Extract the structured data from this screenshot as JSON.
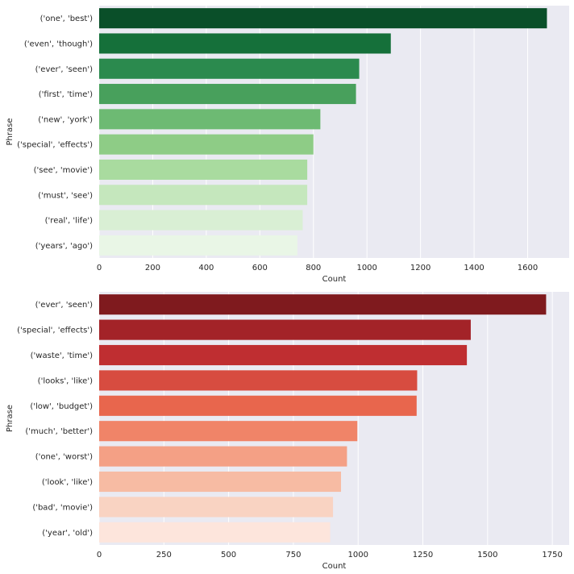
{
  "chart_data": [
    {
      "type": "bar",
      "orientation": "horizontal",
      "palette": [
        "#0a4f29",
        "#15703a",
        "#2b8a4e",
        "#48a05c",
        "#6dba73",
        "#8ecc86",
        "#a9db9f",
        "#c5e7bd",
        "#d9efd4",
        "#e9f6e6"
      ],
      "categories": [
        "('one', 'best')",
        "('even', 'though')",
        "('ever', 'seen')",
        "('first', 'time')",
        "('new', 'york')",
        "('special', 'effects')",
        "('see', 'movie')",
        "('must', 'see')",
        "('real', 'life')",
        "('years', 'ago')"
      ],
      "values": [
        1672,
        1089,
        971,
        959,
        826,
        800,
        777,
        777,
        760,
        740
      ],
      "xlabel": "Count",
      "ylabel": "Phrase",
      "xlim": [
        0,
        1755
      ],
      "xticks": [
        0,
        200,
        400,
        600,
        800,
        1000,
        1200,
        1400,
        1600
      ],
      "grid": true
    },
    {
      "type": "bar",
      "orientation": "horizontal",
      "palette": [
        "#7f1a1e",
        "#a32328",
        "#bf2e31",
        "#d74c40",
        "#e8664d",
        "#f08468",
        "#f4a085",
        "#f7bba3",
        "#f9d3c2",
        "#fde5dc"
      ],
      "categories": [
        "('ever', 'seen')",
        "('special', 'effects')",
        "('waste', 'time')",
        "('looks', 'like')",
        "('low', 'budget')",
        "('much', 'better')",
        "('one', 'worst')",
        "('look', 'like')",
        "('bad', 'movie')",
        "('year', 'old')"
      ],
      "values": [
        1726,
        1435,
        1420,
        1228,
        1226,
        997,
        957,
        934,
        903,
        892
      ],
      "xlabel": "Count",
      "ylabel": "Phrase",
      "xlim": [
        0,
        1815
      ],
      "xticks": [
        0,
        250,
        500,
        750,
        1000,
        1250,
        1500,
        1750
      ],
      "grid": true
    }
  ]
}
